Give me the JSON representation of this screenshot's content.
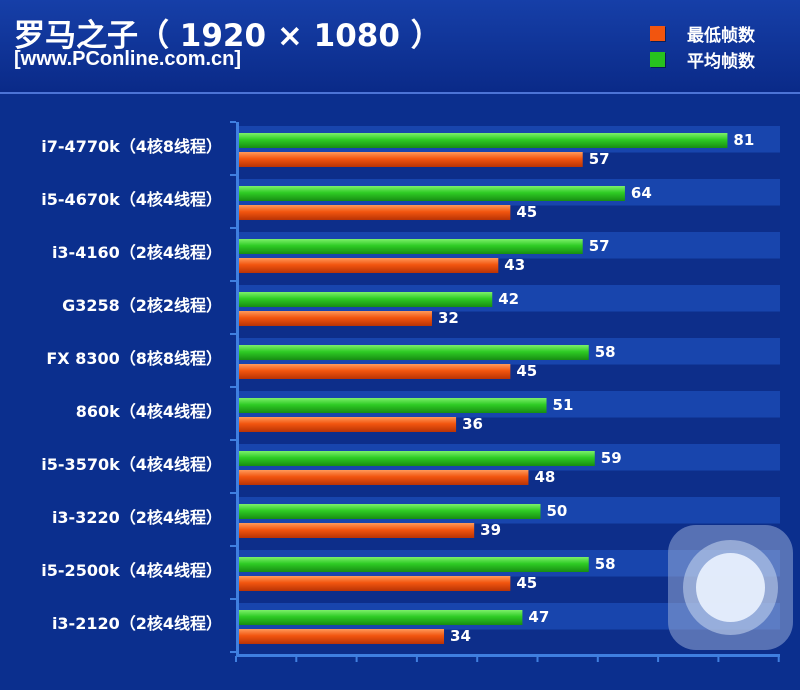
{
  "chart_data": {
    "type": "bar",
    "title": "罗马之子（ 1920 × 1080 ）",
    "subtitle": "[www.PConline.com.cn]",
    "categories": [
      "i7-4770k（4核8线程）",
      "i5-4670k（4核4线程）",
      "i3-4160（2核4线程）",
      "G3258（2核2线程）",
      "FX 8300（8核8线程）",
      "860k（4核4线程）",
      "i5-3570k（4核4线程）",
      "i3-3220（2核4线程）",
      "i5-2500k（4核4线程）",
      "i3-2120（2核4线程）"
    ],
    "series": [
      {
        "name": "平均帧数",
        "color": "#27c21e",
        "values": [
          81,
          64,
          57,
          42,
          58,
          51,
          59,
          50,
          58,
          47
        ]
      },
      {
        "name": "最低帧数",
        "color": "#f2550f",
        "values": [
          57,
          45,
          43,
          32,
          45,
          36,
          48,
          39,
          45,
          34
        ]
      }
    ],
    "legend_position": "top-right",
    "grid": true,
    "xlim": [
      0,
      90
    ]
  },
  "colors": {
    "background": "#0b2f8e",
    "stripe_dark": "#0d2e8a",
    "stripe_light": "#1845ad",
    "axis": "#3f7fe0"
  }
}
